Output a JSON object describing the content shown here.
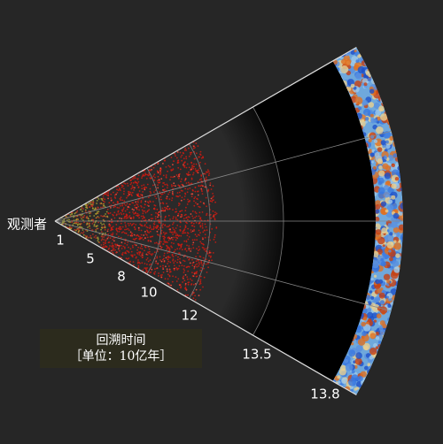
{
  "observer_label": "观测者",
  "time_ticks": [
    "1",
    "5",
    "8",
    "10",
    "12",
    "13.5",
    "13.8"
  ],
  "legend": {
    "title": "回溯时间",
    "unit": "［单位：10亿年］"
  }
}
